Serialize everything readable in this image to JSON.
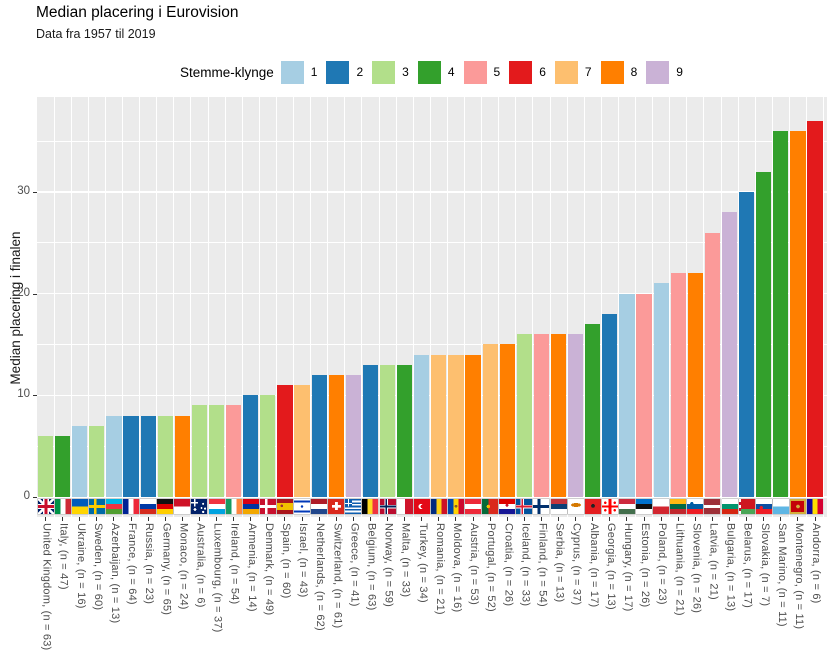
{
  "chart_data": {
    "type": "bar",
    "title": "Median placering i Eurovision",
    "subtitle": "Data fra 1957 til 2019",
    "ylabel": "Median placering i finalen",
    "xlabel": "",
    "ylim": [
      -2,
      39.3
    ],
    "yticks": [
      0,
      10,
      20,
      30
    ],
    "yminor": [
      5,
      15,
      25,
      35
    ],
    "grid": true,
    "legend": {
      "title": "Stemme-klynge",
      "position": "top",
      "entries": [
        "1",
        "2",
        "3",
        "4",
        "5",
        "6",
        "7",
        "8",
        "9"
      ]
    },
    "palette": {
      "1": "#A6CEE3",
      "2": "#1F78B4",
      "3": "#B2DF8A",
      "4": "#33A02C",
      "5": "#FB9A99",
      "6": "#E31A1C",
      "7": "#FDBF6F",
      "8": "#FF7F00",
      "9": "#CAB2D6"
    },
    "panel_bg": "#EBEBEB",
    "grid_color": "#FFFFFF",
    "axis_text_color": "#4D4D4D",
    "bars": [
      {
        "label": "United Kingdom, (n = 63)",
        "country": "United Kingdom",
        "n": 63,
        "median": 6,
        "cluster": "3",
        "flag": "united-kingdom"
      },
      {
        "label": "Italy, (n = 47)",
        "country": "Italy",
        "n": 47,
        "median": 6,
        "cluster": "4",
        "flag": "italy"
      },
      {
        "label": "Ukraine, (n = 16)",
        "country": "Ukraine",
        "n": 16,
        "median": 7,
        "cluster": "1",
        "flag": "ukraine"
      },
      {
        "label": "Sweden, (n = 60)",
        "country": "Sweden",
        "n": 60,
        "median": 7,
        "cluster": "3",
        "flag": "sweden"
      },
      {
        "label": "Azerbaijan, (n = 13)",
        "country": "Azerbaijan",
        "n": 13,
        "median": 8,
        "cluster": "1",
        "flag": "azerbaijan"
      },
      {
        "label": "France, (n = 64)",
        "country": "France",
        "n": 64,
        "median": 8,
        "cluster": "2",
        "flag": "france"
      },
      {
        "label": "Russia, (n = 23)",
        "country": "Russia",
        "n": 23,
        "median": 8,
        "cluster": "2",
        "flag": "russia"
      },
      {
        "label": "Germany, (n = 65)",
        "country": "Germany",
        "n": 65,
        "median": 8,
        "cluster": "3",
        "flag": "germany"
      },
      {
        "label": "Monaco, (n = 24)",
        "country": "Monaco",
        "n": 24,
        "median": 8,
        "cluster": "8",
        "flag": "monaco"
      },
      {
        "label": "Australia, (n = 6)",
        "country": "Australia",
        "n": 6,
        "median": 9,
        "cluster": "3",
        "flag": "australia"
      },
      {
        "label": "Luxembourg, (n = 37)",
        "country": "Luxembourg",
        "n": 37,
        "median": 9,
        "cluster": "3",
        "flag": "luxembourg"
      },
      {
        "label": "Ireland, (n = 54)",
        "country": "Ireland",
        "n": 54,
        "median": 9,
        "cluster": "5",
        "flag": "ireland"
      },
      {
        "label": "Armenia, (n = 14)",
        "country": "Armenia",
        "n": 14,
        "median": 10,
        "cluster": "2",
        "flag": "armenia"
      },
      {
        "label": "Denmark, (n = 49)",
        "country": "Denmark",
        "n": 49,
        "median": 10,
        "cluster": "3",
        "flag": "denmark"
      },
      {
        "label": "Spain, (n = 60)",
        "country": "Spain",
        "n": 60,
        "median": 11,
        "cluster": "6",
        "flag": "spain"
      },
      {
        "label": "Israel, (n = 43)",
        "country": "Israel",
        "n": 43,
        "median": 11,
        "cluster": "7",
        "flag": "israel"
      },
      {
        "label": "Netherlands, (n = 62)",
        "country": "Netherlands",
        "n": 62,
        "median": 12,
        "cluster": "2",
        "flag": "netherlands"
      },
      {
        "label": "Switzerland, (n = 61)",
        "country": "Switzerland",
        "n": 61,
        "median": 12,
        "cluster": "8",
        "flag": "switzerland"
      },
      {
        "label": "Greece, (n = 41)",
        "country": "Greece",
        "n": 41,
        "median": 12,
        "cluster": "9",
        "flag": "greece"
      },
      {
        "label": "Belgium, (n = 63)",
        "country": "Belgium",
        "n": 63,
        "median": 13,
        "cluster": "2",
        "flag": "belgium"
      },
      {
        "label": "Norway, (n = 59)",
        "country": "Norway",
        "n": 59,
        "median": 13,
        "cluster": "3",
        "flag": "norway"
      },
      {
        "label": "Malta, (n = 33)",
        "country": "Malta",
        "n": 33,
        "median": 13,
        "cluster": "4",
        "flag": "malta"
      },
      {
        "label": "Turkey, (n = 34)",
        "country": "Turkey",
        "n": 34,
        "median": 14,
        "cluster": "1",
        "flag": "turkey"
      },
      {
        "label": "Romania, (n = 21)",
        "country": "Romania",
        "n": 21,
        "median": 14,
        "cluster": "7",
        "flag": "romania"
      },
      {
        "label": "Moldova, (n = 16)",
        "country": "Moldova",
        "n": 16,
        "median": 14,
        "cluster": "7",
        "flag": "moldova"
      },
      {
        "label": "Austria, (n = 53)",
        "country": "Austria",
        "n": 53,
        "median": 14,
        "cluster": "8",
        "flag": "austria"
      },
      {
        "label": "Portugal, (n = 52)",
        "country": "Portugal",
        "n": 52,
        "median": 15,
        "cluster": "7",
        "flag": "portugal"
      },
      {
        "label": "Croatia, (n = 26)",
        "country": "Croatia",
        "n": 26,
        "median": 15,
        "cluster": "8",
        "flag": "croatia"
      },
      {
        "label": "Iceland, (n = 33)",
        "country": "Iceland",
        "n": 33,
        "median": 16,
        "cluster": "3",
        "flag": "iceland"
      },
      {
        "label": "Finland, (n = 54)",
        "country": "Finland",
        "n": 54,
        "median": 16,
        "cluster": "5",
        "flag": "finland"
      },
      {
        "label": "Serbia, (n = 13)",
        "country": "Serbia",
        "n": 13,
        "median": 16,
        "cluster": "8",
        "flag": "serbia"
      },
      {
        "label": "Cyprus, (n = 37)",
        "country": "Cyprus",
        "n": 37,
        "median": 16,
        "cluster": "9",
        "flag": "cyprus"
      },
      {
        "label": "Albania, (n = 17)",
        "country": "Albania",
        "n": 17,
        "median": 17,
        "cluster": "4",
        "flag": "albania"
      },
      {
        "label": "Georgia, (n = 13)",
        "country": "Georgia",
        "n": 13,
        "median": 18,
        "cluster": "2",
        "flag": "georgia"
      },
      {
        "label": "Hungary, (n = 17)",
        "country": "Hungary",
        "n": 17,
        "median": 20,
        "cluster": "1",
        "flag": "hungary"
      },
      {
        "label": "Estonia, (n = 26)",
        "country": "Estonia",
        "n": 26,
        "median": 20,
        "cluster": "5",
        "flag": "estonia"
      },
      {
        "label": "Poland, (n = 23)",
        "country": "Poland",
        "n": 23,
        "median": 21,
        "cluster": "1",
        "flag": "poland"
      },
      {
        "label": "Lithuania, (n = 21)",
        "country": "Lithuania",
        "n": 21,
        "median": 22,
        "cluster": "5",
        "flag": "lithuania"
      },
      {
        "label": "Slovenia, (n = 26)",
        "country": "Slovenia",
        "n": 26,
        "median": 22,
        "cluster": "8",
        "flag": "slovenia"
      },
      {
        "label": "Latvia, (n = 21)",
        "country": "Latvia",
        "n": 21,
        "median": 26,
        "cluster": "5",
        "flag": "latvia"
      },
      {
        "label": "Bulgaria, (n = 13)",
        "country": "Bulgaria",
        "n": 13,
        "median": 28,
        "cluster": "9",
        "flag": "bulgaria"
      },
      {
        "label": "Belarus, (n = 17)",
        "country": "Belarus",
        "n": 17,
        "median": 30,
        "cluster": "2",
        "flag": "belarus"
      },
      {
        "label": "Slovakia, (n = 7)",
        "country": "Slovakia",
        "n": 7,
        "median": 32,
        "cluster": "4",
        "flag": "slovakia"
      },
      {
        "label": "San Marino, (n = 11)",
        "country": "San Marino",
        "n": 11,
        "median": 36,
        "cluster": "4",
        "flag": "san-marino"
      },
      {
        "label": "Montenegro, (n = 11)",
        "country": "Montenegro",
        "n": 11,
        "median": 36,
        "cluster": "8",
        "flag": "montenegro"
      },
      {
        "label": "Andorra, (n = 6)",
        "country": "Andorra",
        "n": 6,
        "median": 37,
        "cluster": "6",
        "flag": "andorra"
      }
    ]
  }
}
